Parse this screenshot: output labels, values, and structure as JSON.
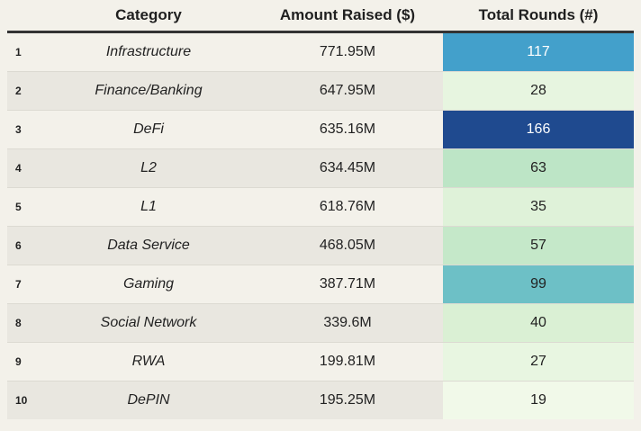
{
  "chart_data": {
    "type": "table",
    "columns": [
      "",
      "Category",
      "Amount Raised ($)",
      "Total Rounds (#)"
    ],
    "rows": [
      {
        "rank": "1",
        "category": "Infrastructure",
        "amount": "771.95M",
        "rounds": "117"
      },
      {
        "rank": "2",
        "category": "Finance/Banking",
        "amount": "647.95M",
        "rounds": "28"
      },
      {
        "rank": "3",
        "category": "DeFi",
        "amount": "635.16M",
        "rounds": "166"
      },
      {
        "rank": "4",
        "category": "L2",
        "amount": "634.45M",
        "rounds": "63"
      },
      {
        "rank": "5",
        "category": "L1",
        "amount": "618.76M",
        "rounds": "35"
      },
      {
        "rank": "6",
        "category": "Data Service",
        "amount": "468.05M",
        "rounds": "57"
      },
      {
        "rank": "7",
        "category": "Gaming",
        "amount": "387.71M",
        "rounds": "99"
      },
      {
        "rank": "8",
        "category": "Social Network",
        "amount": "339.6M",
        "rounds": "40"
      },
      {
        "rank": "9",
        "category": "RWA",
        "amount": "199.81M",
        "rounds": "27"
      },
      {
        "rank": "10",
        "category": "DePIN",
        "amount": "195.25M",
        "rounds": "19"
      }
    ],
    "heat_scale": {
      "column": "Total Rounds (#)",
      "stops": [
        "#f1f9e9",
        "#d6efd0",
        "#b7e2c4",
        "#7ccbc4",
        "#43a0cb",
        "#2676b3",
        "#1f4a8f"
      ]
    }
  }
}
